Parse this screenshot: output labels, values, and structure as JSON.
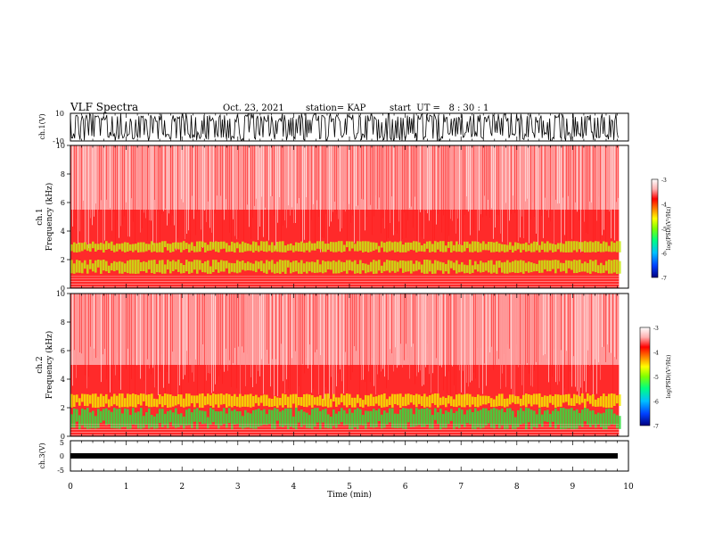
{
  "header": {
    "title": "VLF Spectra",
    "date": "Oct. 23, 2021",
    "station": "station= KAP",
    "start": "start  UT =   8 : 30 : 1"
  },
  "chart_data": [
    {
      "type": "line",
      "panel": "ch1-waveform",
      "ylabel": "ch.1(V)",
      "ylim": [
        -10,
        10
      ],
      "y_ticks": [
        "10",
        "-10"
      ],
      "xlim": [
        0,
        10
      ],
      "description_values": {
        "amplitude_range": [
          -10,
          10
        ]
      }
    },
    {
      "type": "heatmap",
      "panel": "ch1-spectrogram",
      "ylabel": "ch.1\nFrequency (kHz)",
      "ylabel_line1": "ch.1",
      "ylabel_line2": "Frequency (kHz)",
      "ylim": [
        0,
        10
      ],
      "y_ticks": [
        "0",
        "2",
        "4",
        "6",
        "8",
        "10"
      ],
      "xlim": [
        0,
        10
      ],
      "colorbar": {
        "label": "log(PSD)(V²/Hz)",
        "range": [
          -7,
          -3
        ],
        "ticks": [
          "-3",
          "-4",
          "-5",
          "-6",
          "-7"
        ],
        "colors": [
          "#000080",
          "#0040ff",
          "#00c0ff",
          "#00ff80",
          "#80ff00",
          "#ffff00",
          "#ff8000",
          "#ff0000",
          "#ffb0b0",
          "#ffffff"
        ]
      },
      "bands_khz": [
        {
          "from": 1.0,
          "to": 2.0,
          "level": "yellow-green"
        },
        {
          "from": 2.5,
          "to": 3.3,
          "level": "yellow-green"
        },
        {
          "from": 0.0,
          "to": 5.5,
          "level": "red"
        },
        {
          "from": 5.5,
          "to": 10.0,
          "level": "light-red"
        }
      ]
    },
    {
      "type": "heatmap",
      "panel": "ch2-spectrogram",
      "ylabel_line1": "ch.2",
      "ylabel_line2": "Frequency (kHz)",
      "ylim": [
        0,
        10
      ],
      "y_ticks": [
        "0",
        "2",
        "4",
        "6",
        "8",
        "10"
      ],
      "xlim": [
        0,
        10
      ],
      "colorbar": {
        "label": "log(PSD)(V²/Hz)",
        "range": [
          -7,
          -3
        ],
        "ticks": [
          "-3",
          "-4",
          "-5",
          "-6",
          "-7"
        ]
      },
      "bands_khz": [
        {
          "from": 0.5,
          "to": 2.0,
          "level": "green"
        },
        {
          "from": 2.0,
          "to": 3.0,
          "level": "yellow"
        },
        {
          "from": 0.0,
          "to": 5.0,
          "level": "red"
        },
        {
          "from": 5.0,
          "to": 10.0,
          "level": "light-red"
        }
      ]
    },
    {
      "type": "line",
      "panel": "ch3-waveform",
      "ylabel": "ch.3(V)",
      "ylim": [
        -5,
        5
      ],
      "y_ticks": [
        "5",
        "0",
        "-5"
      ],
      "xlim": [
        0,
        10
      ],
      "signal_range": [
        -0.5,
        0.5
      ]
    }
  ],
  "xaxis": {
    "label": "Time (min)",
    "ticks": [
      "0",
      "1",
      "2",
      "3",
      "4",
      "5",
      "6",
      "7",
      "8",
      "9",
      "10"
    ],
    "range": [
      0,
      10
    ],
    "data_end": 9.83
  }
}
